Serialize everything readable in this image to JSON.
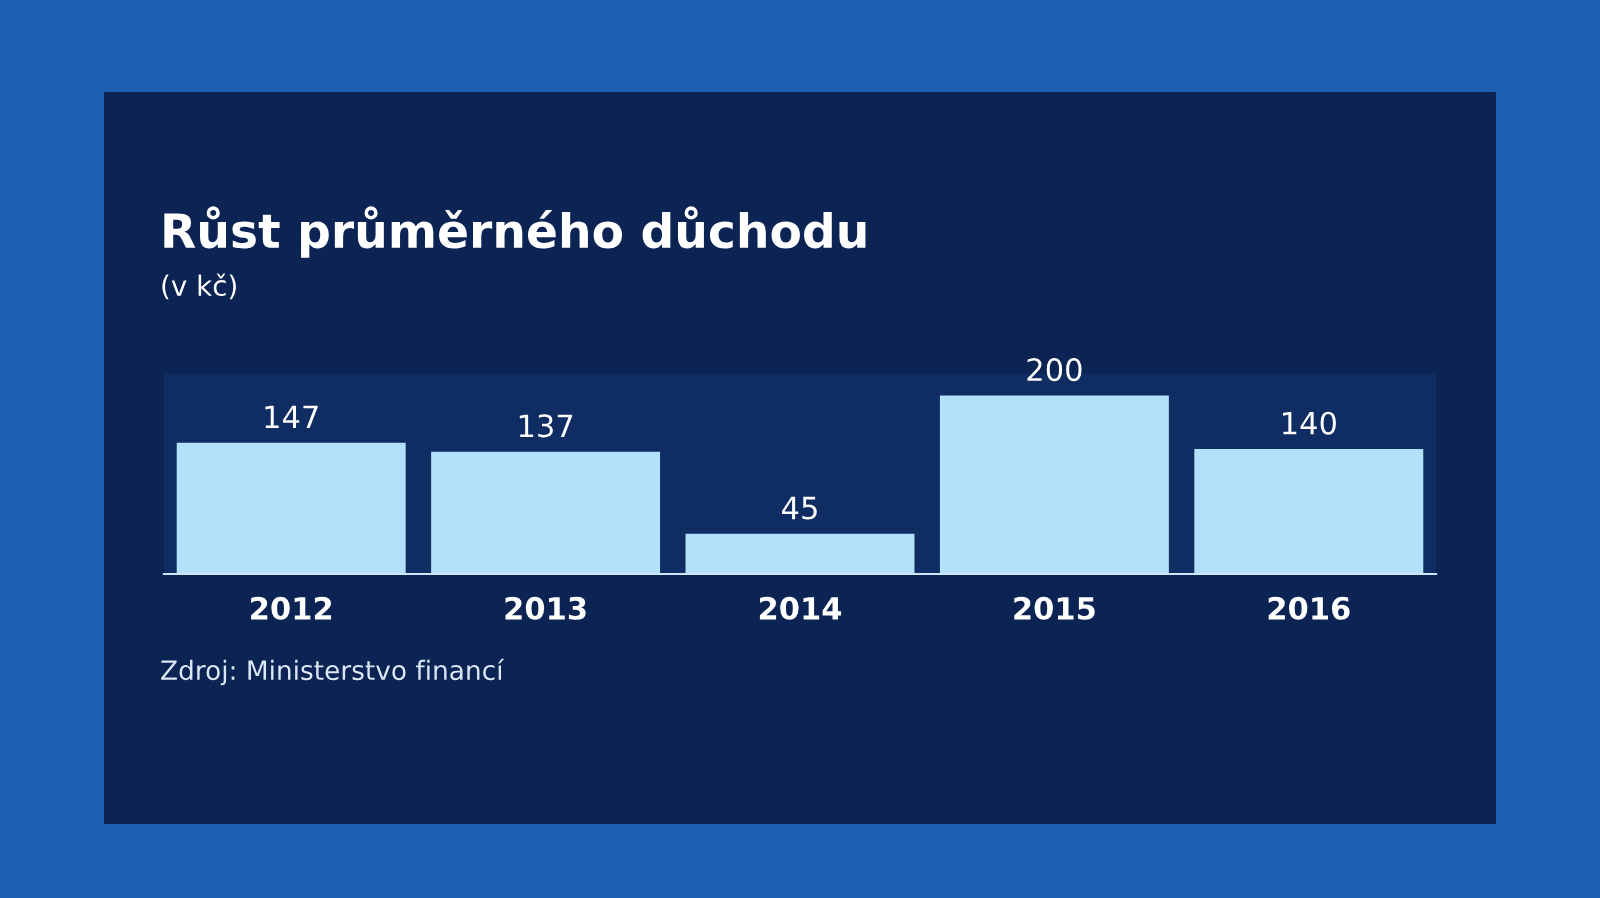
{
  "chart_data": {
    "type": "bar",
    "title": "Růst průměrného důchodu",
    "subtitle": "(v kč)",
    "categories": [
      "2012",
      "2013",
      "2014",
      "2015",
      "2016"
    ],
    "values": [
      147,
      137,
      45,
      200,
      140
    ],
    "color": "#b3e0fa",
    "data_labels": true,
    "annotations": [
      "Zdroj: Ministerstvo financí"
    ]
  }
}
